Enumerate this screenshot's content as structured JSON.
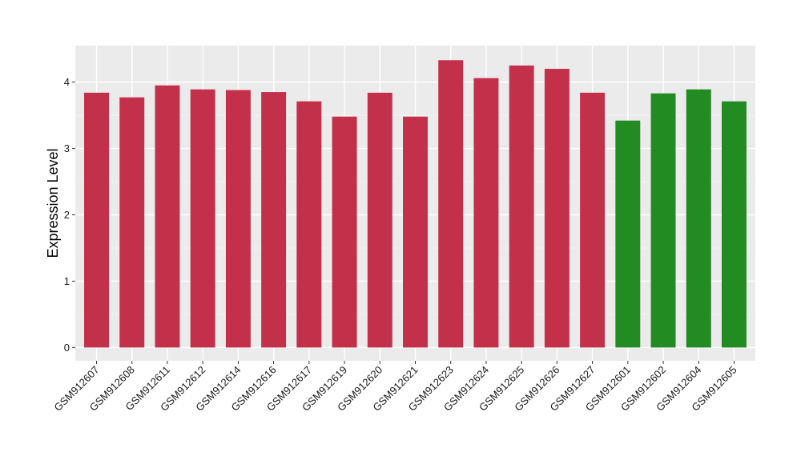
{
  "chart_data": {
    "type": "bar",
    "title": "",
    "xlabel": "",
    "ylabel": "Expression Level",
    "ylim": [
      -0.2,
      4.55
    ],
    "yticks": [
      0,
      1,
      2,
      3,
      4
    ],
    "grid": true,
    "legend": "none",
    "categories": [
      "GSM912607",
      "GSM912608",
      "GSM912611",
      "GSM912612",
      "GSM912614",
      "GSM912616",
      "GSM912617",
      "GSM912619",
      "GSM912620",
      "GSM912621",
      "GSM912623",
      "GSM912624",
      "GSM912625",
      "GSM912626",
      "GSM912627",
      "GSM912601",
      "GSM912602",
      "GSM912604",
      "GSM912605"
    ],
    "values": [
      3.84,
      3.77,
      3.95,
      3.89,
      3.88,
      3.85,
      3.71,
      3.48,
      3.84,
      3.48,
      4.33,
      4.06,
      4.25,
      4.2,
      3.84,
      3.42,
      3.83,
      3.89,
      3.71
    ],
    "groups": [
      "red",
      "red",
      "red",
      "red",
      "red",
      "red",
      "red",
      "red",
      "red",
      "red",
      "red",
      "red",
      "red",
      "red",
      "red",
      "green",
      "green",
      "green",
      "green"
    ]
  },
  "colors": {
    "red": "#c3304a",
    "green": "#228b22",
    "panel_background": "#ebebeb",
    "grid_major": "#ffffff",
    "grid_minor": "#f5f5f5"
  }
}
